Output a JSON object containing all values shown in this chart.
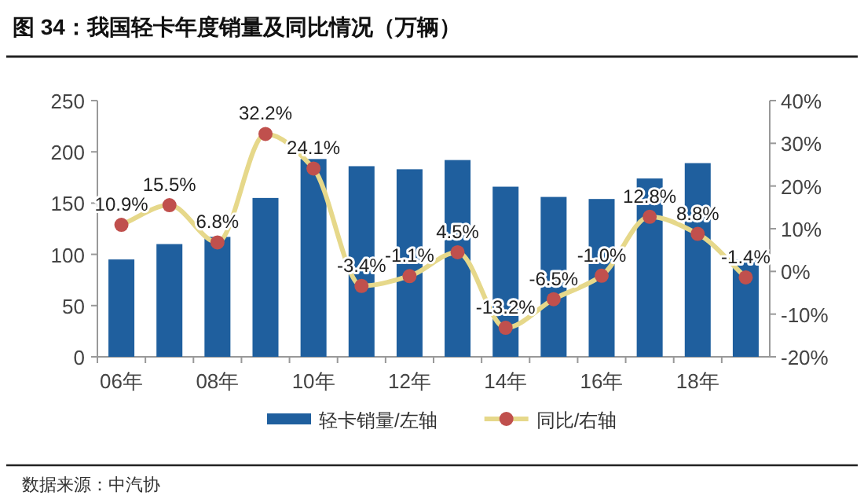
{
  "chart_data": {
    "type": "bar",
    "title": "图 34：我国轻卡年度销量及同比情况（万辆）",
    "categories": [
      "06年",
      null,
      "08年",
      null,
      "10年",
      null,
      "12年",
      null,
      "14年",
      null,
      "16年",
      null,
      "18年",
      null
    ],
    "series": [
      {
        "name": "轻卡销量/左轴",
        "color": "#1f5f9e",
        "values": [
          95,
          110,
          117,
          155,
          193,
          186,
          183,
          192,
          166,
          156,
          154,
          174,
          189,
          95
        ]
      },
      {
        "name": "同比/右轴",
        "type": "line",
        "axis": "y2",
        "color": "#e6d88a",
        "colors": [
          "#c0504d",
          "#c0504d",
          "#c0504d",
          "#c0504d",
          "#c0504d",
          "#c0504d",
          "#c0504d",
          "#c0504d",
          "#c0504d",
          "#c0504d",
          "#c0504d",
          "#c0504d",
          "#c0504d",
          "#c0504d"
        ],
        "marker": "circle",
        "values": [
          10.9,
          15.5,
          6.8,
          32.2,
          24.1,
          -3.4,
          -1.1,
          4.5,
          -13.2,
          -6.5,
          -1.0,
          12.8,
          8.8,
          -1.4
        ],
        "value_labels": [
          "10.9%",
          "15.5%",
          "6.8%",
          "32.2%",
          "24.1%",
          "-3.4%",
          "-1.1%",
          "4.5%",
          "-13.2%",
          "-6.5%",
          "-1.0%",
          "12.8%",
          "8.8%",
          "-1.4%"
        ]
      }
    ],
    "ylim": [
      0,
      250
    ],
    "yticks": [
      0,
      50,
      100,
      150,
      200,
      250
    ],
    "y2lim": [
      -20,
      40
    ],
    "y2ticks": [
      {
        "value": -20,
        "label": "-20%"
      },
      {
        "value": -10,
        "label": "-10%"
      },
      {
        "value": 0,
        "label": "0%"
      },
      {
        "value": 10,
        "label": "10%"
      },
      {
        "value": 20,
        "label": "20%"
      },
      {
        "value": 30,
        "label": "30%"
      },
      {
        "value": 40,
        "label": "40%"
      }
    ],
    "grid": false,
    "legend": "bottom",
    "annotations": [
      "数据来源：中汽协"
    ]
  }
}
